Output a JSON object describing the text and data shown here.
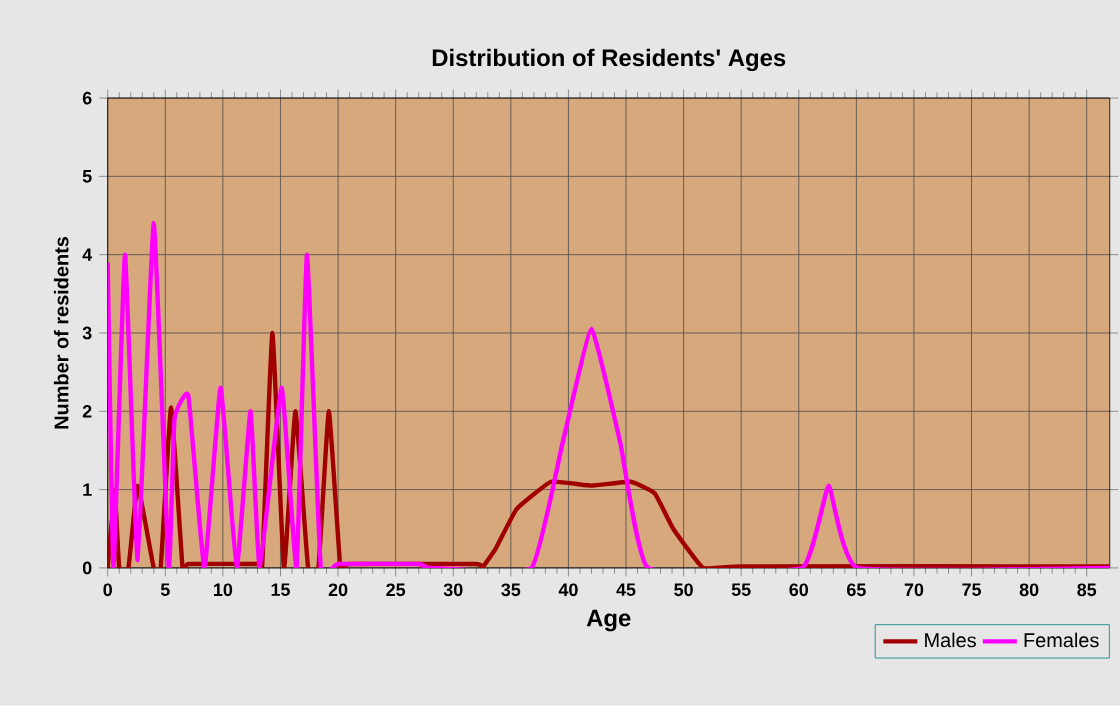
{
  "chart_data": {
    "type": "line",
    "title": "Distribution of Residents' Ages",
    "xlabel": "Age",
    "ylabel": "Number of residents",
    "xlim": [
      0,
      87
    ],
    "ylim": [
      0,
      6
    ],
    "xticks": [
      0,
      5,
      10,
      15,
      20,
      25,
      30,
      35,
      40,
      45,
      50,
      55,
      60,
      65,
      70,
      75,
      80,
      85
    ],
    "yticks": [
      0,
      1,
      2,
      3,
      4,
      5,
      6
    ],
    "grid": true,
    "legend": "bottom right",
    "line_style": "solid",
    "series": [
      {
        "name": "Males",
        "color": "#a00000",
        "x": [
          0,
          0.6,
          1.0,
          1.8,
          2.6,
          4.0,
          4.6,
          5.5,
          6.5,
          7.0,
          13.0,
          13.4,
          14.3,
          15.3,
          16.3,
          17.4,
          18.3,
          19.2,
          20.2,
          21,
          32,
          32.5,
          33.7,
          35.5,
          38.5,
          42,
          45.4,
          47.5,
          49.1,
          51.7,
          55,
          87
        ],
        "values": [
          0,
          1,
          0,
          0,
          1.05,
          0,
          0,
          2.05,
          0,
          0.05,
          0.05,
          0,
          3,
          0,
          2,
          0,
          0,
          2,
          0,
          0.05,
          0.05,
          0,
          0.25,
          0.75,
          1.1,
          1.05,
          1.1,
          0.95,
          0.5,
          0,
          0.02,
          0.02
        ]
      },
      {
        "name": "Females",
        "color": "#ff00ff",
        "x": [
          0,
          0.5,
          1.5,
          2.6,
          4.0,
          5.3,
          5.8,
          7.0,
          8.4,
          9.8,
          11.2,
          12.4,
          13.2,
          15.1,
          16.4,
          17.3,
          18.5,
          20,
          27,
          28,
          36.8,
          39.5,
          42,
          44.5,
          46.9,
          60.3,
          62.6,
          65.1,
          87
        ],
        "values": [
          3.9,
          0,
          4,
          0.1,
          4.4,
          0,
          1.9,
          2.2,
          0,
          2.3,
          0,
          2,
          0,
          2.3,
          0,
          4,
          0,
          0.05,
          0.05,
          0,
          0,
          1.6,
          3.05,
          1.6,
          0,
          0,
          1.05,
          0,
          0
        ]
      }
    ]
  }
}
